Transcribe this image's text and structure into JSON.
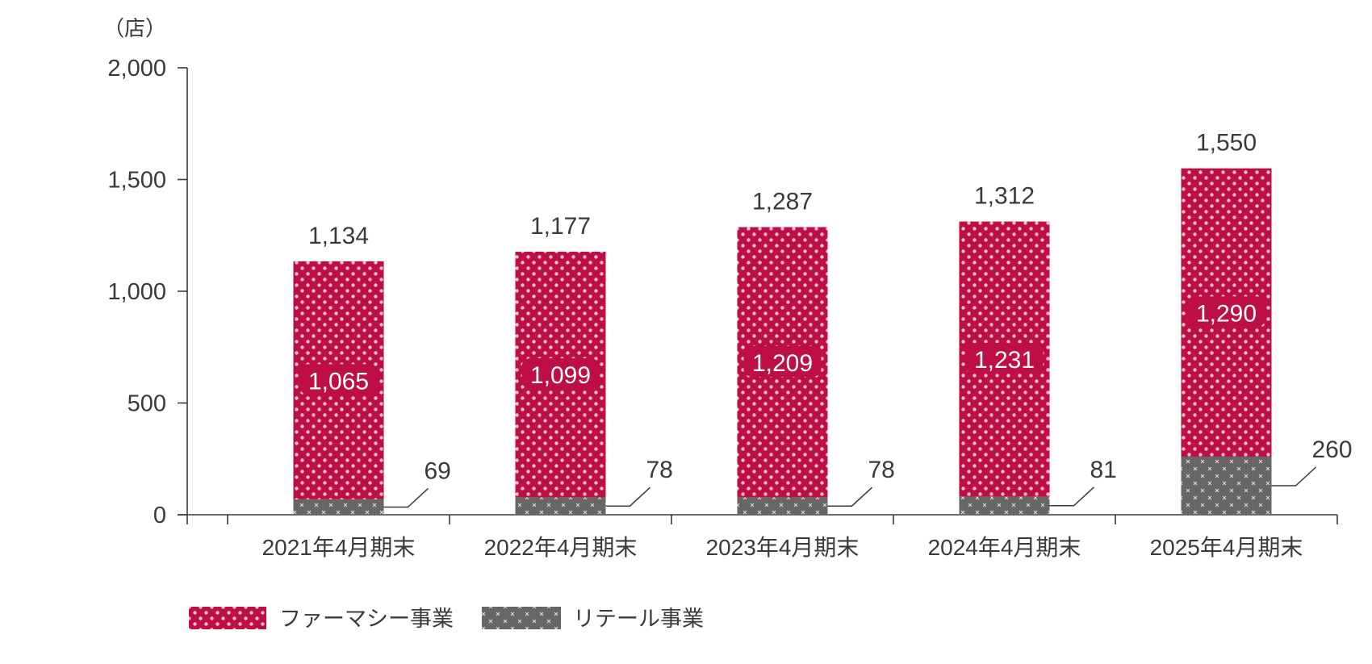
{
  "chart_data": {
    "type": "bar",
    "stacked": true,
    "unit_label": "（店）",
    "categories": [
      "2021年4月期末",
      "2022年4月期末",
      "2023年4月期末",
      "2024年4月期末",
      "2025年4月期末"
    ],
    "series": [
      {
        "name": "ファーマシー事業",
        "values": [
          1065,
          1099,
          1209,
          1231,
          1290
        ],
        "color": "#BE0F45",
        "pattern": "dots"
      },
      {
        "name": "リテール事業",
        "values": [
          69,
          78,
          78,
          81,
          260
        ],
        "color": "#666666",
        "pattern": "crosses"
      }
    ],
    "totals": [
      1134,
      1177,
      1287,
      1312,
      1550
    ],
    "ylim": [
      0,
      2000
    ],
    "yticks": [
      0,
      500,
      1000,
      1500,
      2000
    ],
    "ytick_labels": [
      "0",
      "500",
      "1,000",
      "1,500",
      "2,000"
    ],
    "legend": "bottom-left",
    "grid": false
  }
}
